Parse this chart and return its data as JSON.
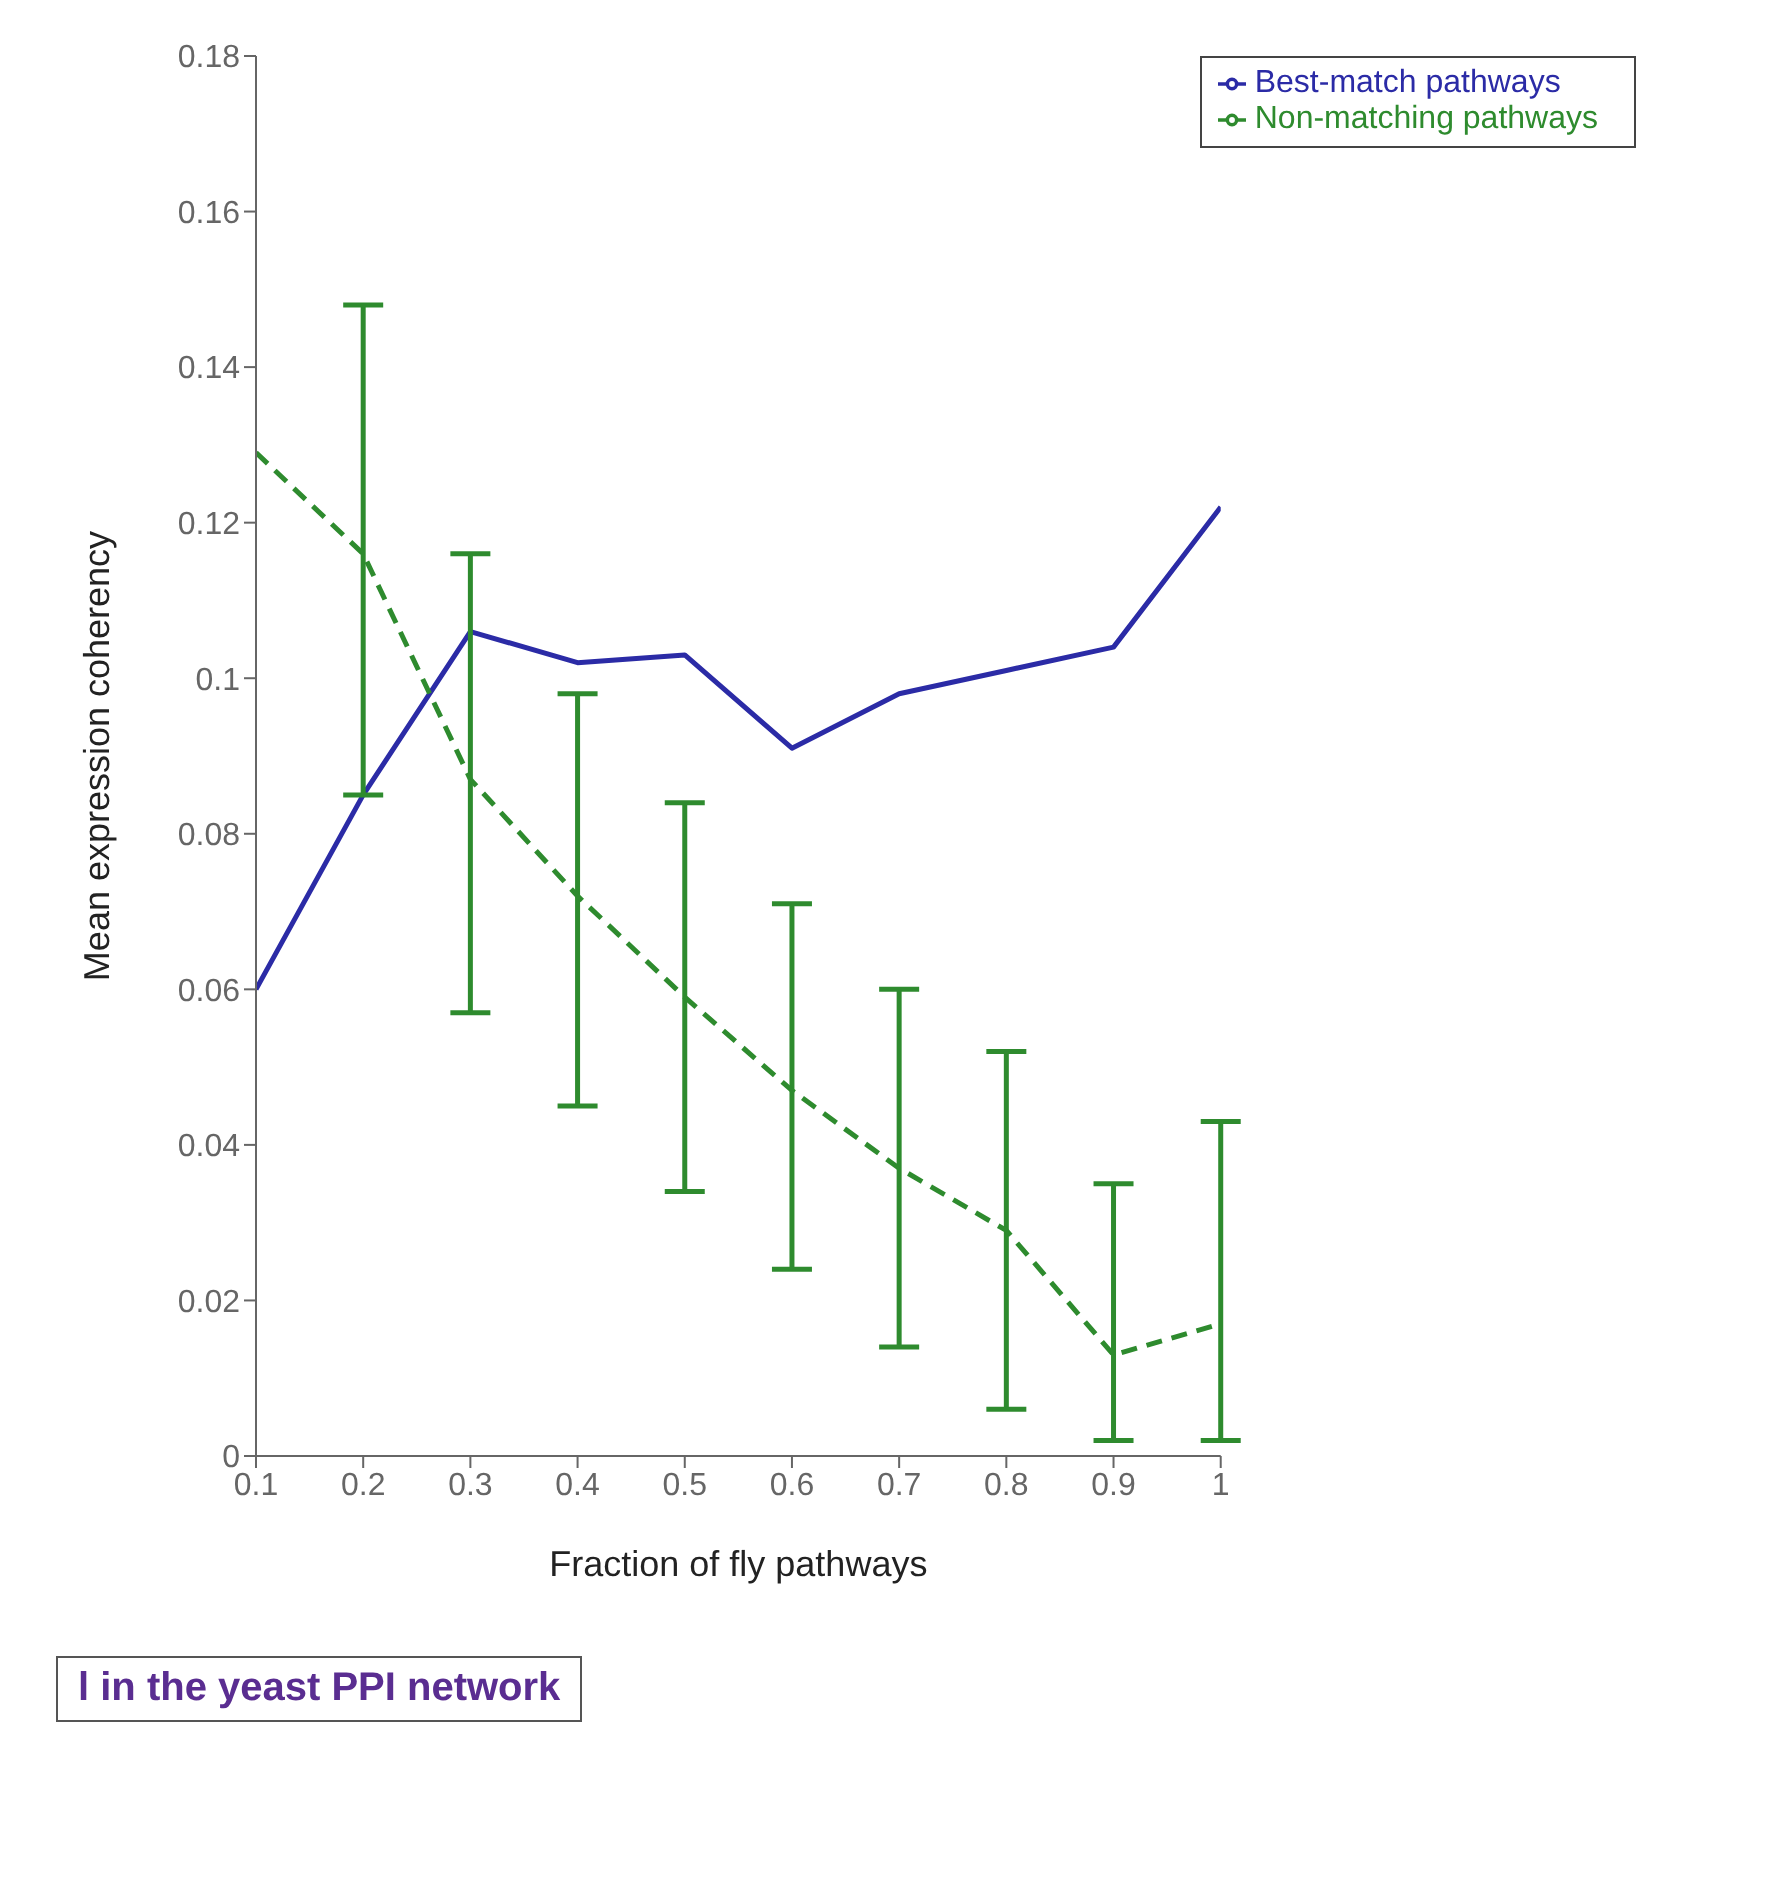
{
  "chart_data": {
    "type": "line",
    "xlabel": "Fraction of fly pathways",
    "ylabel": "Mean expression coherency",
    "x": [
      0.1,
      0.2,
      0.3,
      0.4,
      0.5,
      0.6,
      0.7,
      0.8,
      0.9,
      1
    ],
    "series": [
      {
        "name": "Best-match pathways",
        "color": "#2b2ba6",
        "line_style": "solid",
        "values": [
          0.06,
          0.085,
          0.106,
          0.102,
          0.103,
          0.091,
          0.098,
          0.101,
          0.104,
          0.122
        ]
      },
      {
        "name": "Non-matching pathways",
        "color": "#2e8b2e",
        "line_style": "dashed",
        "values": [
          0.129,
          0.116,
          0.087,
          0.072,
          0.059,
          0.047,
          0.037,
          0.029,
          0.013,
          0.017
        ],
        "errors": [
          null,
          [
            0.085,
            0.148
          ],
          [
            0.057,
            0.116
          ],
          [
            0.045,
            0.098
          ],
          [
            0.034,
            0.084
          ],
          [
            0.024,
            0.071
          ],
          [
            0.014,
            0.06
          ],
          [
            0.006,
            0.052
          ],
          [
            0.002,
            0.035
          ],
          [
            0.002,
            0.043
          ]
        ]
      }
    ],
    "xlim": [
      0.1,
      1
    ],
    "xticks": [
      0.1,
      0.2,
      0.3,
      0.4,
      0.5,
      0.6,
      0.7,
      0.8,
      0.9,
      1
    ],
    "ylim": [
      0,
      0.18
    ],
    "yticks": [
      0,
      0.02,
      0.04,
      0.06,
      0.08,
      0.1,
      0.12,
      0.14,
      0.16,
      0.18
    ],
    "marker": "none",
    "grid": false,
    "legend": "top right",
    "annotations": [
      "l in the yeast PPI network"
    ]
  }
}
